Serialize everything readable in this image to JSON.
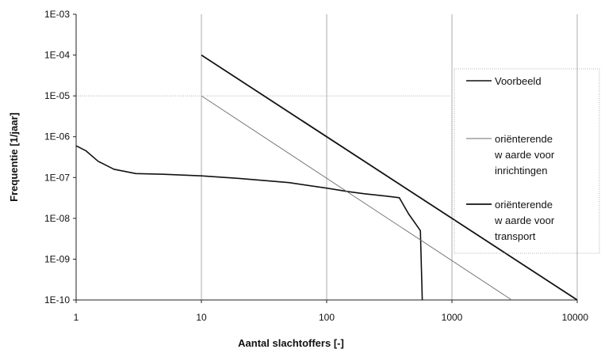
{
  "chart_data": {
    "type": "line",
    "title": "",
    "xlabel": "Aantal slachtoffers [-]",
    "ylabel": "Frequentie [1/jaar]",
    "x_scale": "log",
    "y_scale": "log",
    "xlim": [
      1,
      10000
    ],
    "ylim": [
      1e-10,
      0.001
    ],
    "x_ticks": [
      {
        "value": 1,
        "label": "1"
      },
      {
        "value": 10,
        "label": "10"
      },
      {
        "value": 100,
        "label": "100"
      },
      {
        "value": 1000,
        "label": "1000"
      },
      {
        "value": 10000,
        "label": "10000"
      }
    ],
    "y_ticks": [
      {
        "value": 0.001,
        "label": "1E-03"
      },
      {
        "value": 0.0001,
        "label": "1E-04"
      },
      {
        "value": 1e-05,
        "label": "1E-05"
      },
      {
        "value": 1e-06,
        "label": "1E-06"
      },
      {
        "value": 1e-07,
        "label": "1E-07"
      },
      {
        "value": 1e-08,
        "label": "1E-08"
      },
      {
        "value": 1e-09,
        "label": "1E-09"
      },
      {
        "value": 1e-10,
        "label": "1E-10"
      }
    ],
    "grid": {
      "x_major": true,
      "y_levels": [
        1e-05
      ]
    },
    "legend_position": "right",
    "series": [
      {
        "name": "Voorbeeld",
        "color": "#111111",
        "style": "solid",
        "points": [
          [
            1,
            6e-07
          ],
          [
            1.2,
            4.5e-07
          ],
          [
            1.5,
            2.5e-07
          ],
          [
            2,
            1.6e-07
          ],
          [
            3,
            1.25e-07
          ],
          [
            5,
            1.2e-07
          ],
          [
            10,
            1.1e-07
          ],
          [
            20,
            9.5e-08
          ],
          [
            50,
            7.5e-08
          ],
          [
            100,
            5.5e-08
          ],
          [
            150,
            4.5e-08
          ],
          [
            200,
            4e-08
          ],
          [
            300,
            3.5e-08
          ],
          [
            380,
            3.2e-08
          ],
          [
            450,
            1.3e-08
          ],
          [
            560,
            5e-09
          ],
          [
            580,
            1e-10
          ]
        ]
      },
      {
        "name": "oriënterende waarde voor inrichtingen",
        "color": "#6e6e6e",
        "style": "solid",
        "points": [
          [
            10,
            1e-05
          ],
          [
            3000,
            1e-10
          ]
        ]
      },
      {
        "name": "oriënterende waarde voor transport",
        "color": "#111111",
        "style": "solid",
        "points": [
          [
            10,
            0.0001
          ],
          [
            10000,
            1e-10
          ]
        ]
      }
    ],
    "legend": [
      {
        "lines": [
          "Voorbeeld"
        ],
        "series": 0
      },
      {
        "lines": [
          "oriënterende",
          "w aarde voor",
          "inrichtingen"
        ],
        "series": 1
      },
      {
        "lines": [
          "oriënterende",
          "w aarde voor",
          "transport"
        ],
        "series": 2
      }
    ]
  }
}
